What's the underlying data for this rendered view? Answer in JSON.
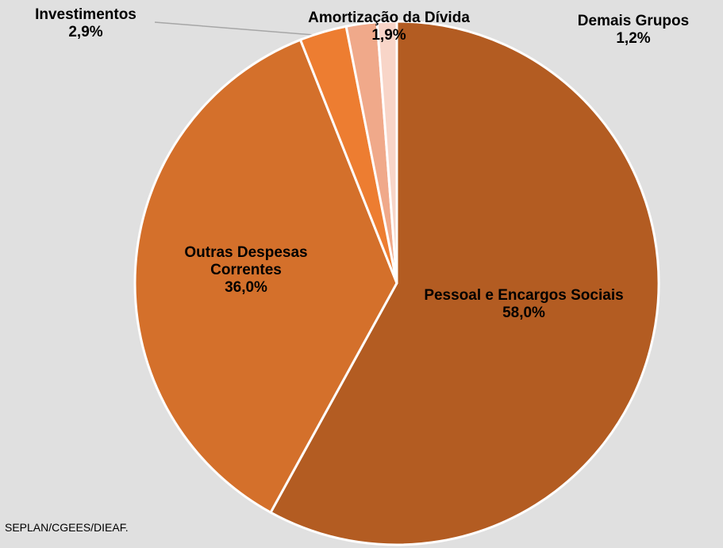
{
  "chart_data": {
    "type": "pie",
    "categories": [
      "Pessoal e Encargos Sociais",
      "Outras Despesas Correntes",
      "Investimentos",
      "Amortização da Dívida",
      "Demais Grupos"
    ],
    "values": [
      58.0,
      36.0,
      2.9,
      1.9,
      1.2
    ],
    "value_labels": [
      "58,0%",
      "36,0%",
      "2,9%",
      "1,9%",
      "1,2%"
    ],
    "colors": [
      "#b35c22",
      "#d4702b",
      "#ed7d31",
      "#f0a98a",
      "#f8d5c8"
    ],
    "source": "SEPLAN/CGEES/DIEAF."
  }
}
